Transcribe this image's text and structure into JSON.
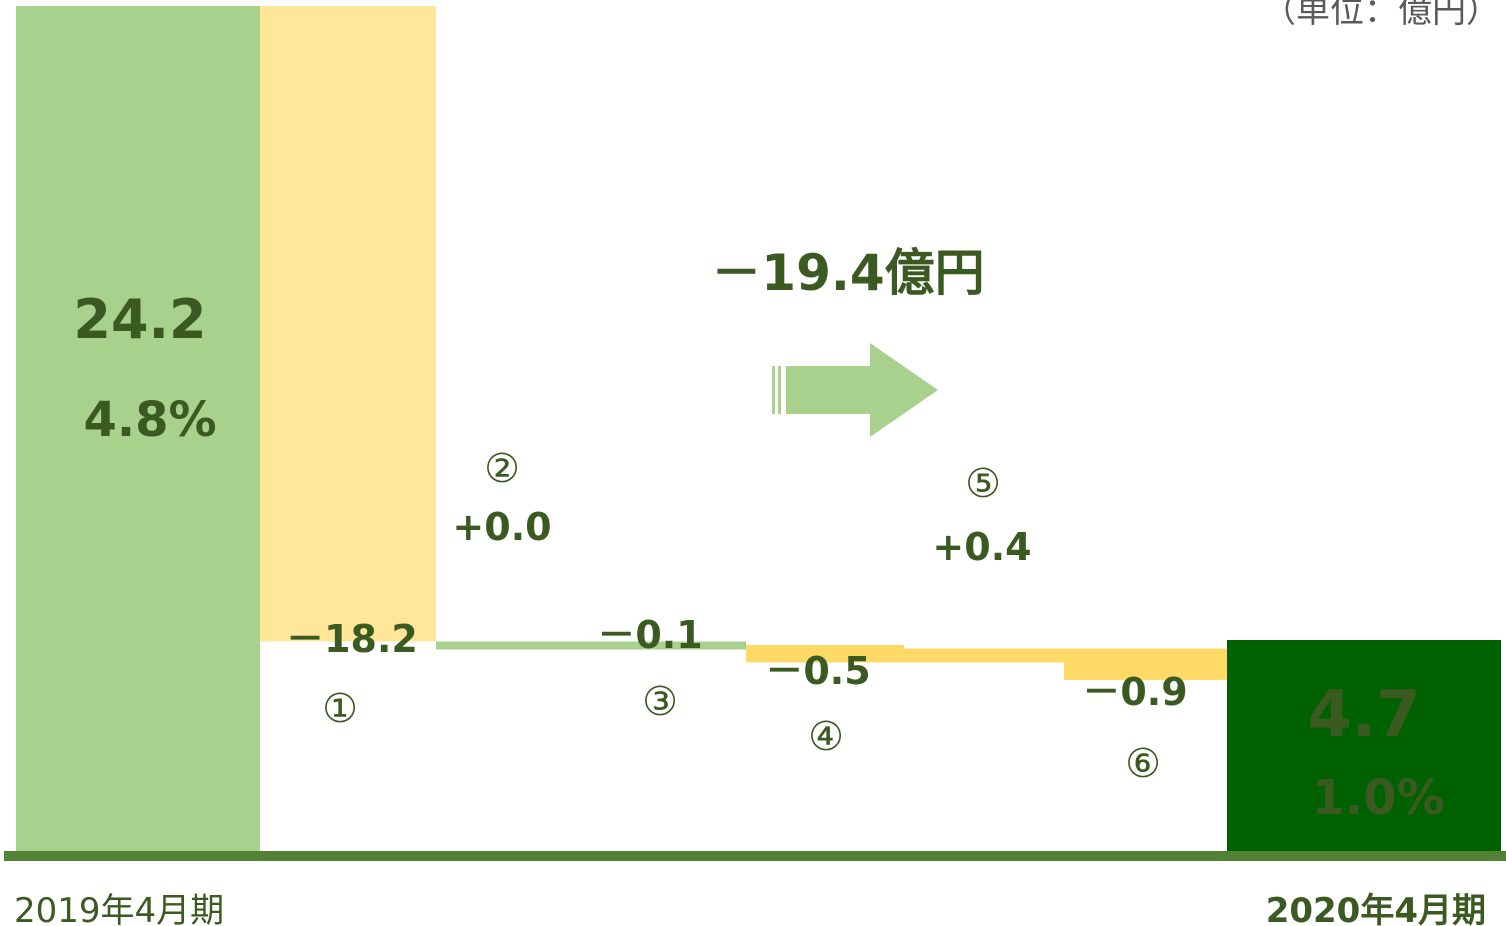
{
  "unit_label": "（単位：億円）",
  "total_change": "－19.4億円",
  "colors": {
    "start_bar": "#a9d18e",
    "decrease_large": "#ffe699",
    "decrease": "#ffd966",
    "increase": "#a9d18e",
    "end_bar": "#006100",
    "axis": "#548235",
    "label": "#3b5a22",
    "arrow": "#a9d18e"
  },
  "chart_data": {
    "type": "bar",
    "subtype": "waterfall",
    "unit": "億円",
    "ylim": [
      0,
      24.2
    ],
    "categories": [
      "2019年4月期",
      "①",
      "②",
      "③",
      "④",
      "⑤",
      "⑥",
      "2020年4月期"
    ],
    "start": {
      "label": "2019年4月期",
      "value": 24.2,
      "value_text": "24.2",
      "margin_text": "4.8%"
    },
    "steps": [
      {
        "marker": "①",
        "delta": -18.2,
        "delta_text": "－18.2"
      },
      {
        "marker": "②",
        "delta": 0.0,
        "delta_text": "+0.0"
      },
      {
        "marker": "③",
        "delta": -0.1,
        "delta_text": "－0.1"
      },
      {
        "marker": "④",
        "delta": -0.5,
        "delta_text": "－0.5"
      },
      {
        "marker": "⑤",
        "delta": 0.4,
        "delta_text": "+0.4"
      },
      {
        "marker": "⑥",
        "delta": -0.9,
        "delta_text": "－0.9"
      }
    ],
    "end": {
      "label": "2020年4月期",
      "value": 4.7,
      "value_text": "4.7",
      "margin_text": "1.0%"
    },
    "total_change": -19.4
  }
}
